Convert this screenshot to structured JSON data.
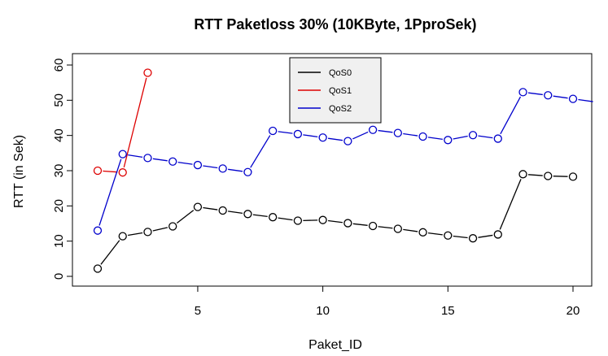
{
  "chart_data": {
    "type": "line",
    "title": "RTT Paketloss 30% (10KByte, 1PproSek)",
    "xlabel": "Paket_ID",
    "ylabel": "RTT (in Sek)",
    "xlim": [
      0.5,
      20.8
    ],
    "ylim": [
      -1,
      62
    ],
    "xticks": [
      5,
      10,
      15,
      20
    ],
    "yticks": [
      0,
      10,
      20,
      30,
      40,
      50,
      60
    ],
    "grid": false,
    "legend_position": "top-center",
    "series": [
      {
        "name": "QoS0",
        "color": "#000000",
        "x": [
          1,
          2,
          3,
          4,
          5,
          6,
          7,
          8,
          9,
          10,
          11,
          12,
          13,
          14,
          15,
          16,
          17,
          18,
          19,
          20
        ],
        "y": [
          2.2,
          11.4,
          12.6,
          14.2,
          19.7,
          18.7,
          17.7,
          16.8,
          15.8,
          16.0,
          15.1,
          14.3,
          13.5,
          12.5,
          11.6,
          10.8,
          11.9,
          29.0,
          28.5,
          28.3
        ]
      },
      {
        "name": "QoS1",
        "color": "#dd0000",
        "x": [
          1,
          2,
          3
        ],
        "y": [
          30.0,
          29.5,
          57.8
        ]
      },
      {
        "name": "QoS2",
        "color": "#0000cc",
        "x": [
          1,
          2,
          3,
          4,
          5,
          6,
          7,
          8,
          9,
          10,
          11,
          12,
          13,
          14,
          15,
          16,
          17,
          18,
          19,
          20,
          20.8
        ],
        "y": [
          13.0,
          34.7,
          33.6,
          32.6,
          31.6,
          30.6,
          29.6,
          41.3,
          40.4,
          39.4,
          38.4,
          41.6,
          40.7,
          39.7,
          38.7,
          40.1,
          39.1,
          52.3,
          51.4,
          50.4,
          49.6
        ],
        "markers": [
          true,
          true,
          true,
          true,
          true,
          true,
          true,
          true,
          true,
          true,
          true,
          true,
          true,
          true,
          true,
          true,
          true,
          true,
          true,
          true,
          false
        ]
      }
    ]
  }
}
